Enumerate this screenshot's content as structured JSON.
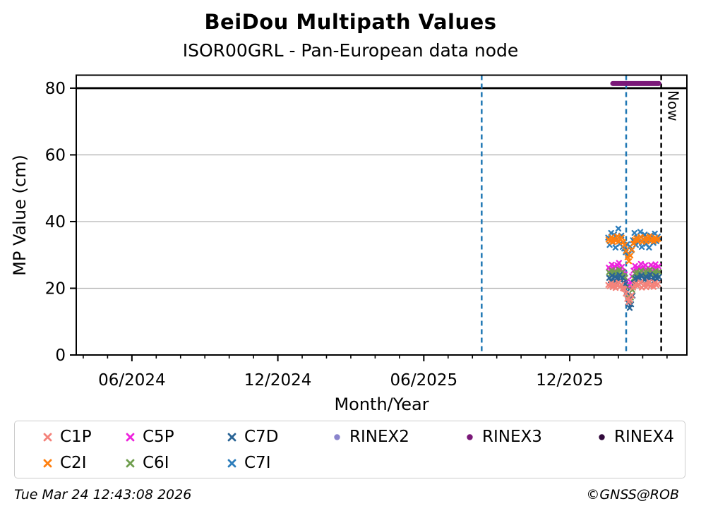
{
  "header": {
    "title": "BeiDou Multipath Values",
    "subtitle": "ISOR00GRL - Pan-European data node"
  },
  "footer": {
    "timestamp": "Tue Mar 24 12:43:08 2026",
    "credit": "©GNSS@ROB"
  },
  "legend": {
    "items": [
      {
        "label": "C1P",
        "color": "#f4837b",
        "marker": "x"
      },
      {
        "label": "C2I",
        "color": "#ff7f0e",
        "marker": "x"
      },
      {
        "label": "C5P",
        "color": "#ee22dd",
        "marker": "x"
      },
      {
        "label": "C6I",
        "color": "#6f9e4e",
        "marker": "x"
      },
      {
        "label": "C7D",
        "color": "#2a6495",
        "marker": "x"
      },
      {
        "label": "C7I",
        "color": "#2e7ebc",
        "marker": "x"
      },
      {
        "label": "RINEX2",
        "color": "#8a84cc",
        "marker": "circle"
      },
      {
        "label": "RINEX3",
        "color": "#7a1878",
        "marker": "circle"
      },
      {
        "label": "RINEX4",
        "color": "#320a3c",
        "marker": "circle"
      }
    ]
  },
  "chart_data": {
    "type": "scatter",
    "title": "BeiDou Multipath Values",
    "subtitle": "ISOR00GRL - Pan-European data node",
    "xlabel": "Month/Year",
    "ylabel": "MP Value (cm)",
    "x_unit": "decimal_year",
    "xlim": [
      2024.226,
      2026.318
    ],
    "ylim": [
      0,
      83.9
    ],
    "grid": "horizontal",
    "legend_position": "bottom",
    "x_major_ticks": [
      {
        "t": 2024.4167,
        "label": "06/2024"
      },
      {
        "t": 2024.9167,
        "label": "12/2024"
      },
      {
        "t": 2025.4167,
        "label": "06/2025"
      },
      {
        "t": 2025.9167,
        "label": "12/2025"
      }
    ],
    "x_minor_ticks": {
      "start": 2024.25,
      "step": 0.083333,
      "count": 25
    },
    "y_ticks": [
      0,
      20,
      40,
      60,
      80
    ],
    "y_gridlines": [
      20,
      40,
      60
    ],
    "threshold_line": {
      "value": 80,
      "color": "#000000"
    },
    "vlines": [
      {
        "t": 2025.615,
        "color": "#1f77b4",
        "style": "dashed",
        "label": ""
      },
      {
        "t": 2026.11,
        "color": "#1f77b4",
        "style": "dashed",
        "label": ""
      },
      {
        "t": 2026.23,
        "color": "#000000",
        "style": "dashed",
        "label": "Now"
      }
    ],
    "t": [
      2026.048,
      2026.053,
      2026.058,
      2026.063,
      2026.068,
      2026.073,
      2026.078,
      2026.083,
      2026.088,
      2026.093,
      2026.098,
      2026.103,
      2026.108,
      2026.113,
      2026.118,
      2026.123,
      2026.128,
      2026.133,
      2026.138,
      2026.143,
      2026.148,
      2026.153,
      2026.158,
      2026.163,
      2026.168,
      2026.173,
      2026.178,
      2026.183,
      2026.188,
      2026.193,
      2026.198,
      2026.203,
      2026.208,
      2026.213,
      2026.218
    ],
    "series": [
      {
        "name": "C7I",
        "color": "#2e7ebc",
        "marker": "x",
        "dt": 0.0004,
        "values": [
          35.2,
          33.0,
          36.6,
          33.8,
          36.1,
          32.2,
          34.7,
          37.9,
          33.3,
          35.8,
          32.4,
          31.9,
          30.8,
          33.2,
          30.2,
          32.5,
          31.4,
          34.4,
          36.6,
          33.0,
          35.2,
          33.8,
          36.9,
          32.4,
          34.7,
          36.1,
          33.3,
          35.0,
          32.2,
          35.8,
          34.4,
          33.6,
          36.4,
          34.1,
          35.5
        ]
      },
      {
        "name": "C2I",
        "color": "#ff7f0e",
        "marker": "x",
        "dt": 0.0016,
        "values": [
          34.6,
          34.1,
          35.3,
          33.9,
          34.9,
          34.3,
          35.6,
          34.0,
          34.8,
          35.2,
          33.8,
          33.0,
          31.2,
          29.3,
          28.1,
          29.8,
          31.6,
          33.4,
          34.5,
          35.0,
          34.2,
          34.8,
          35.4,
          33.9,
          34.6,
          35.1,
          34.0,
          34.7,
          35.6,
          34.3,
          34.9,
          34.1,
          35.2,
          34.5,
          34.8
        ]
      },
      {
        "name": "C5P",
        "color": "#ee22dd",
        "marker": "x",
        "dt": 0.0024,
        "values": [
          26.2,
          25.5,
          27.1,
          25.9,
          26.6,
          25.2,
          26.9,
          27.6,
          25.7,
          26.4,
          25.0,
          24.2,
          22.1,
          20.6,
          21.0,
          21.9,
          23.6,
          25.3,
          26.7,
          25.5,
          26.1,
          25.8,
          27.3,
          25.1,
          26.4,
          26.9,
          25.6,
          26.2,
          25.3,
          27.0,
          26.5,
          25.8,
          27.2,
          25.9,
          26.6
        ]
      },
      {
        "name": "C6I",
        "color": "#6f9e4e",
        "marker": "x",
        "dt": 0.0032,
        "values": [
          24.8,
          24.2,
          25.4,
          24.0,
          25.0,
          23.8,
          24.6,
          25.6,
          24.1,
          24.9,
          23.7,
          23.2,
          20.4,
          17.8,
          16.4,
          17.2,
          19.5,
          23.0,
          24.4,
          24.9,
          24.3,
          24.7,
          25.3,
          23.9,
          24.6,
          25.1,
          24.0,
          24.7,
          25.5,
          24.2,
          24.8,
          24.1,
          25.2,
          24.4,
          24.9
        ]
      },
      {
        "name": "C7D",
        "color": "#2a6495",
        "marker": "x",
        "dt": 0.004,
        "values": [
          23.1,
          22.4,
          23.8,
          22.1,
          23.4,
          21.9,
          22.8,
          24.0,
          22.3,
          23.2,
          21.8,
          21.3,
          18.9,
          15.6,
          14.1,
          15.2,
          17.8,
          21.5,
          22.9,
          23.3,
          22.5,
          23.0,
          23.9,
          22.0,
          22.7,
          23.5,
          22.2,
          23.1,
          24.1,
          22.6,
          23.2,
          22.3,
          23.7,
          22.8,
          23.4
        ]
      },
      {
        "name": "C1P",
        "color": "#f4837b",
        "marker": "x",
        "dt": 0.0008,
        "values": [
          21.0,
          20.6,
          21.5,
          20.3,
          21.2,
          20.1,
          20.9,
          21.7,
          20.4,
          21.1,
          20.0,
          19.8,
          18.4,
          16.8,
          15.9,
          16.5,
          17.9,
          20.2,
          21.0,
          21.4,
          20.7,
          21.1,
          21.8,
          20.2,
          20.8,
          21.3,
          20.3,
          21.0,
          21.9,
          20.6,
          21.2,
          20.4,
          21.6,
          20.9,
          21.3
        ]
      },
      {
        "name": "RINEX2",
        "color": "#8a84cc",
        "marker": "circle",
        "dt": 0,
        "values": []
      },
      {
        "name": "RINEX3",
        "color": "#7a1878",
        "marker": "circle",
        "dt": 0,
        "values": [],
        "segment": {
          "t_start": 2026.064,
          "t_end": 2026.222,
          "value": 81.4
        }
      },
      {
        "name": "RINEX4",
        "color": "#320a3c",
        "marker": "circle",
        "dt": 0,
        "values": []
      }
    ]
  }
}
